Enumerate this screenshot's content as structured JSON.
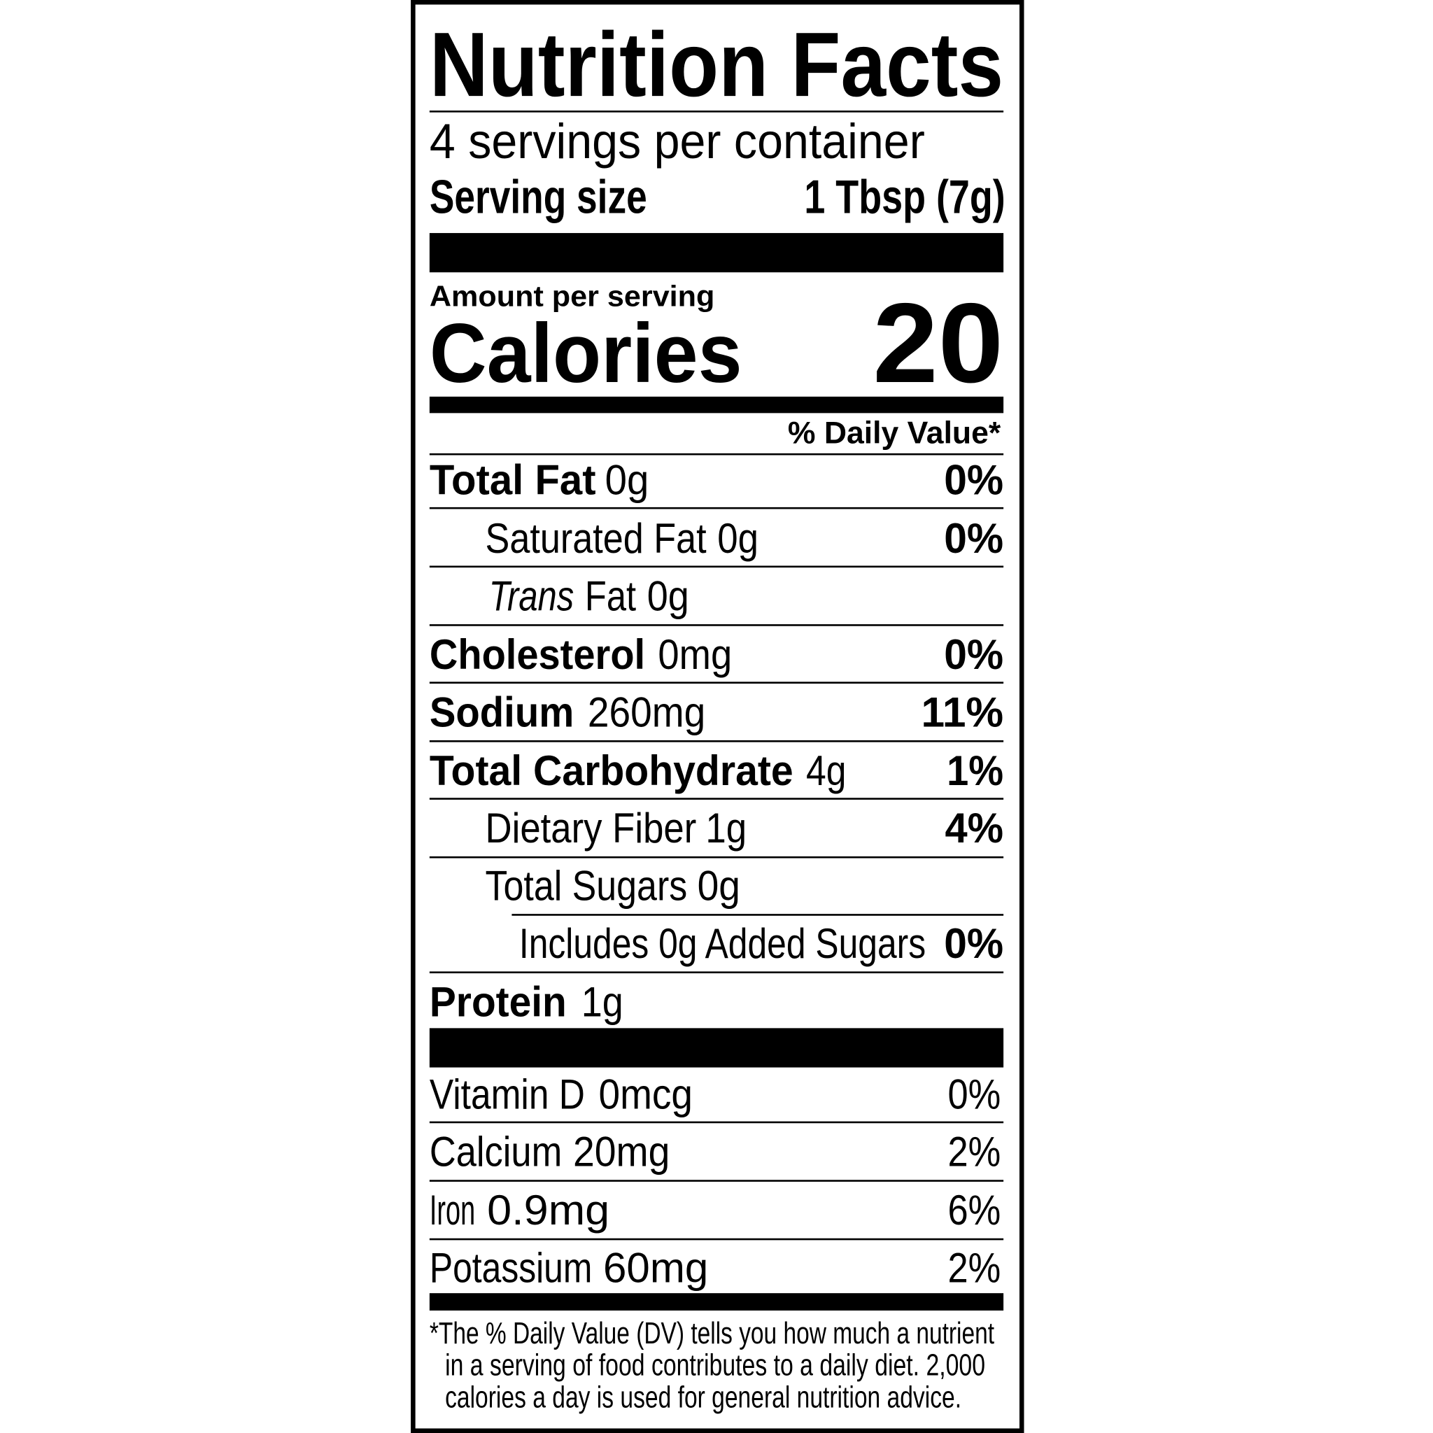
{
  "label": {
    "title": "Nutrition Facts",
    "servings": "4 servings per container",
    "serving_size_label": "Serving size",
    "serving_size": "1 Tbsp (7g)",
    "amount_per_serving": "Amount per serving",
    "calories_label": "Calories",
    "calories": "20",
    "daily_value_header": "% Daily Value*",
    "nutrients": [
      {
        "label": "Total Fat",
        "amount": "0g",
        "dv": "0%"
      },
      {
        "label": "Saturated Fat",
        "amount": "0g",
        "dv": "0%"
      },
      {
        "label_italic": "Trans",
        "label": "Fat",
        "amount": "0g"
      },
      {
        "label": "Cholesterol",
        "amount": "0mg",
        "dv": "0%"
      },
      {
        "label": "Sodium",
        "amount": "260mg",
        "dv": "11%"
      },
      {
        "label": "Total Carbohydrate",
        "amount": "4g",
        "dv": "1%"
      },
      {
        "label": "Dietary Fiber",
        "amount": "1g",
        "dv": "4%"
      },
      {
        "label": "Total Sugars",
        "amount": "0g"
      },
      {
        "label": "Includes 0g Added Sugars",
        "dv": "0%"
      },
      {
        "label": "Protein",
        "amount": "1g"
      }
    ],
    "vitamins": [
      {
        "label": "Vitamin D",
        "amount": "0mcg",
        "dv": "0%"
      },
      {
        "label": "Calcium",
        "amount": "20mg",
        "dv": "2%"
      },
      {
        "label": "Iron",
        "amount": "0.9mg",
        "dv": "6%"
      },
      {
        "label": "Potassium",
        "amount": "60mg",
        "dv": "2%"
      }
    ],
    "footnote": [
      "*The % Daily Value (DV) tells you how much a nutrient",
      "in a serving of food contributes to a daily diet. 2,000",
      "calories a day is used for general nutrition advice."
    ]
  }
}
